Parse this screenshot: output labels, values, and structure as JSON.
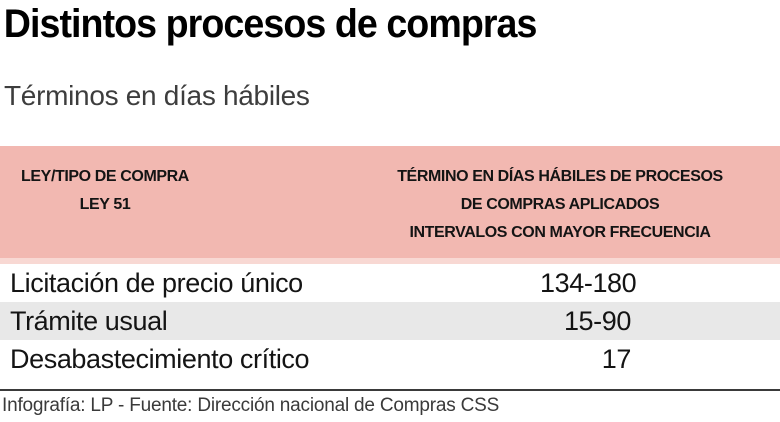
{
  "title": "Distintos procesos de compras",
  "subtitle": "Términos en días hábiles",
  "table": {
    "header": {
      "left_line1": "LEY/TIPO DE COMPRA",
      "left_line2": "LEY 51",
      "right_line1": "TÉRMINO EN DÍAS HÁBILES DE PROCESOS",
      "right_line2": "DE COMPRAS APLICADOS",
      "right_line3": "INTERVALOS CON MAYOR FRECUENCIA"
    },
    "rows": [
      {
        "label": "Licitación de precio único",
        "value": "134-180"
      },
      {
        "label": "Trámite usual",
        "value": "15-90"
      },
      {
        "label": "Desabastecimiento crítico",
        "value": "17"
      }
    ]
  },
  "footer": {
    "credit": "Infografía: LP - Fuente: Dirección nacional de Compras CSS"
  },
  "colors": {
    "header_bg": "#f2b8b1",
    "header_strip": "#f8d8d3",
    "row_alt_bg": "#e8e8e8",
    "text": "#141414",
    "subtitle_text": "#3d3d3d",
    "footer_text": "#3a3a3a"
  },
  "chart_data": {
    "type": "table",
    "title": "Distintos procesos de compras",
    "subtitle": "Términos en días hábiles",
    "columns": [
      "LEY/TIPO DE COMPRA LEY 51",
      "TÉRMINO EN DÍAS HÁBILES DE PROCESOS DE COMPRAS APLICADOS INTERVALOS CON MAYOR FRECUENCIA"
    ],
    "rows": [
      [
        "Licitación de precio único",
        "134-180"
      ],
      [
        "Trámite usual",
        "15-90"
      ],
      [
        "Desabastecimiento crítico",
        "17"
      ]
    ],
    "source": "Infografía: LP - Fuente: Dirección nacional de Compras CSS"
  }
}
